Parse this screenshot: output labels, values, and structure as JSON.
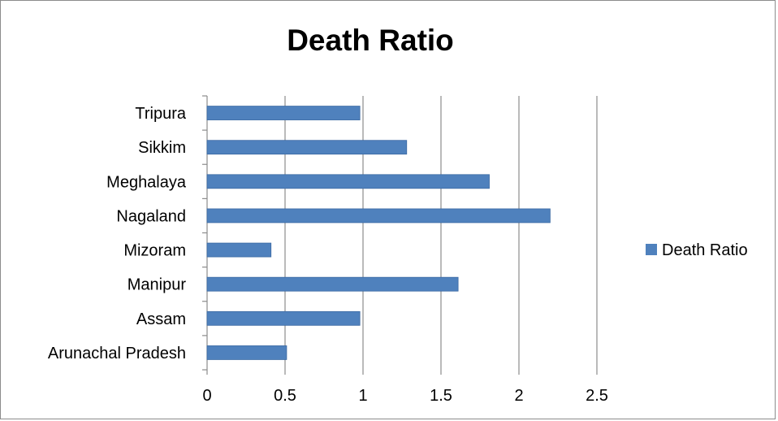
{
  "chart_data": {
    "type": "bar",
    "orientation": "horizontal",
    "title": "Death Ratio",
    "xlabel": "",
    "ylabel": "",
    "categories": [
      "Arunachal Pradesh",
      "Assam",
      "Manipur",
      "Mizoram",
      "Nagaland",
      "Meghalaya",
      "Sikkim",
      "Tripura"
    ],
    "series": [
      {
        "name": "Death Ratio",
        "values": [
          0.51,
          0.98,
          1.61,
          0.41,
          2.2,
          1.81,
          1.28,
          0.98
        ]
      }
    ],
    "xlim": [
      0,
      2.5
    ],
    "x_ticks": [
      "0",
      "0.5",
      "1",
      "1.5",
      "2",
      "2.5"
    ],
    "grid": true,
    "legend_position": "right",
    "colors": {
      "bar": "#4f81bd",
      "bar_edge": "#3c6aa3",
      "grid": "#8c8c8c",
      "axis": "#8c8c8c"
    }
  }
}
